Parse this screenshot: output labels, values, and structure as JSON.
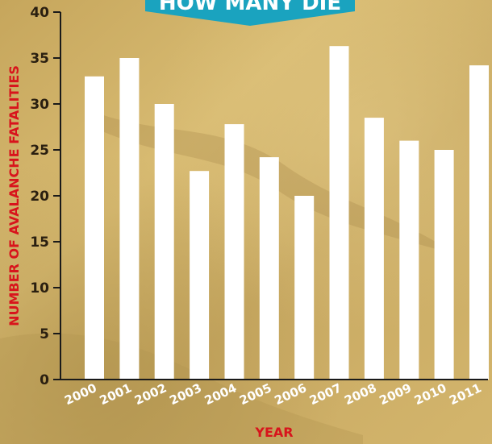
{
  "banner": {
    "text": "HOW MANY DIE",
    "color": "#1aa3bf"
  },
  "colors": {
    "bar": "#ffffff",
    "axis_title": "#d8141c",
    "axis_line": "#1a1a1a",
    "background": "#cdae63"
  },
  "chart_data": {
    "type": "bar",
    "title": "",
    "xlabel": "YEAR",
    "ylabel": "NUMBER OF AVALANCHE FATALITIES",
    "categories": [
      "2000",
      "2001",
      "2002",
      "2003",
      "2004",
      "2005",
      "2006",
      "2007",
      "2008",
      "2009",
      "2010",
      "2011"
    ],
    "values": [
      33,
      35,
      30,
      22.7,
      27.8,
      24.2,
      20,
      36.3,
      28.5,
      26,
      25,
      34.2
    ],
    "ylim": [
      0,
      40
    ],
    "yticks": [
      0,
      5,
      10,
      15,
      20,
      25,
      30,
      35,
      40
    ],
    "grid": false,
    "legend": "none"
  }
}
